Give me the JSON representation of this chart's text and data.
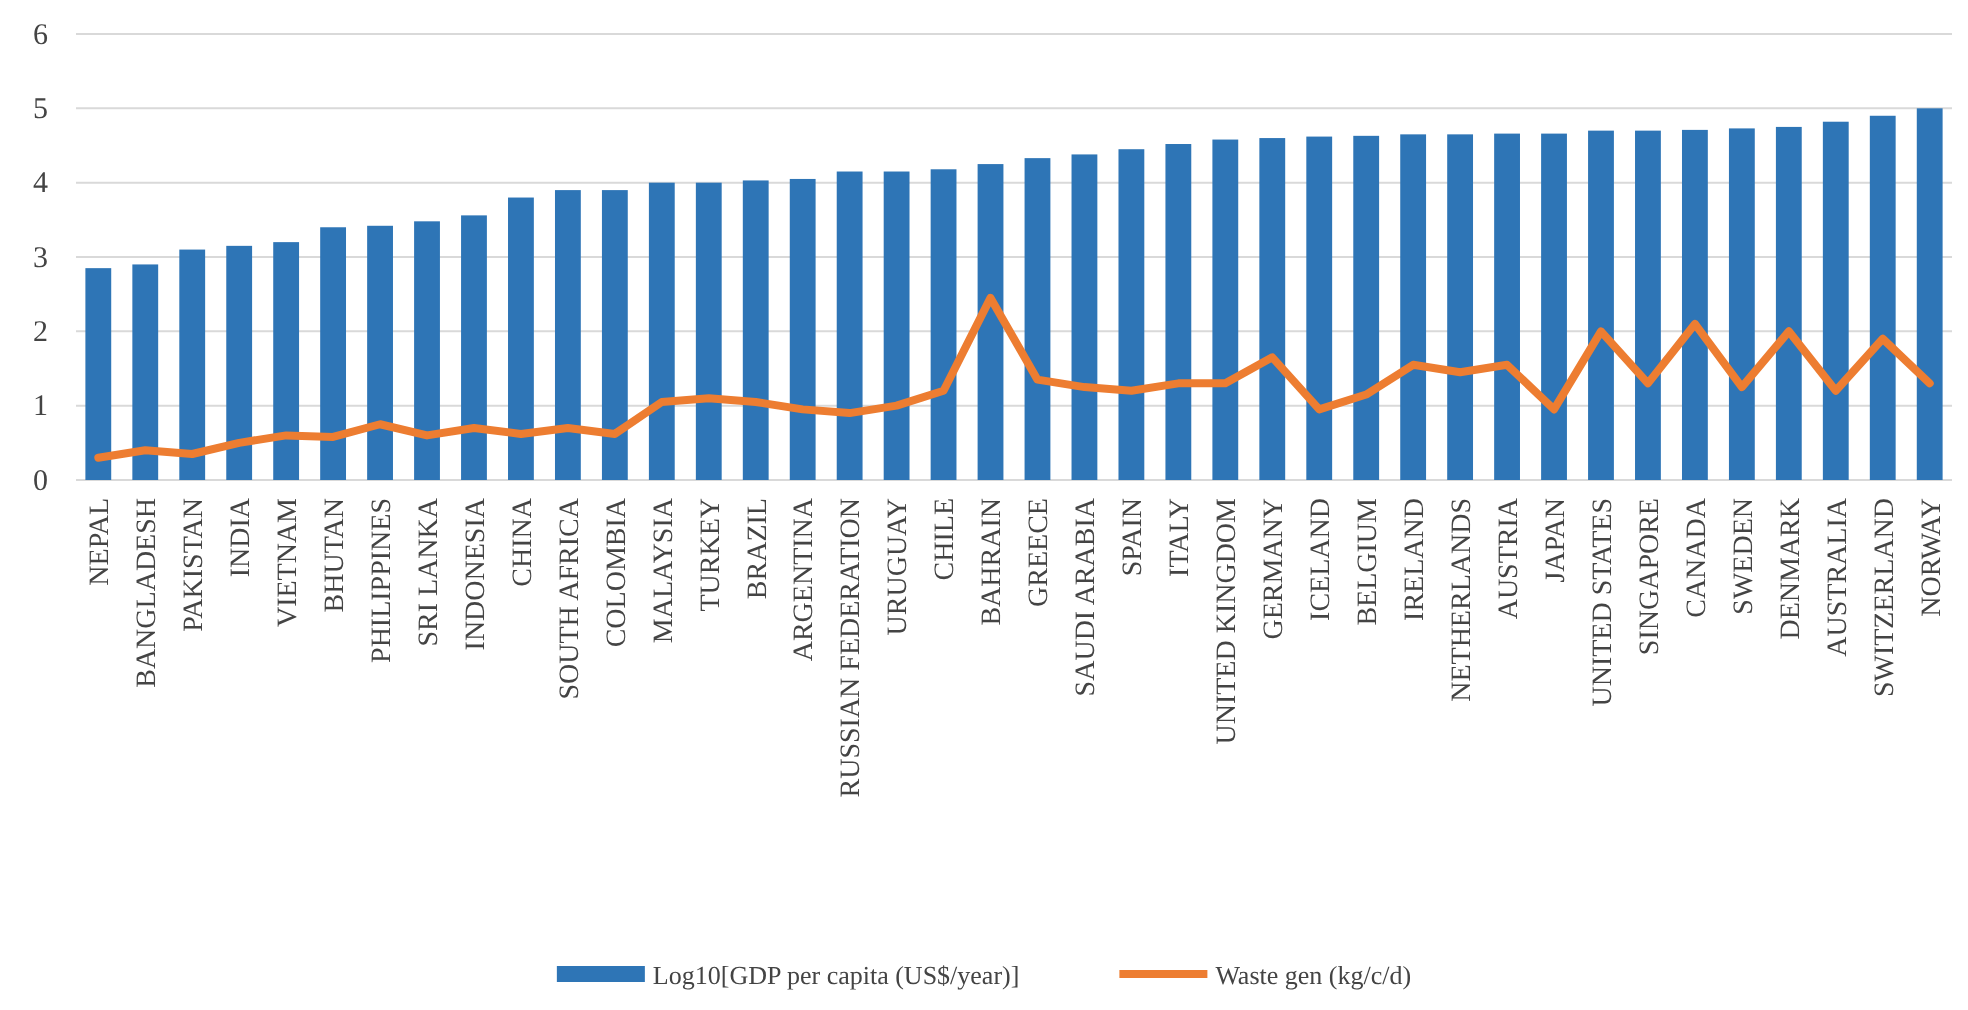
{
  "chart_data": {
    "type": "bar",
    "categories": [
      "NEPAL",
      "BANGLADESH",
      "PAKISTAN",
      "INDIA",
      "VIETNAM",
      "BHUTAN",
      "PHILIPPINES",
      "SRI LANKA",
      "INDONESIA",
      "CHINA",
      "SOUTH AFRICA",
      "COLOMBIA",
      "MALAYSIA",
      "TURKEY",
      "BRAZIL",
      "ARGENTINA",
      "RUSSIAN FEDERATION",
      "URUGUAY",
      "CHILE",
      "BAHRAIN",
      "GREECE",
      "SAUDI ARABIA",
      "SPAIN",
      "ITALY",
      "UNITED KINGDOM",
      "GERMANY",
      "ICELAND",
      "BELGIUM",
      "IRELAND",
      "NETHERLANDS",
      "AUSTRIA",
      "JAPAN",
      "UNITED STATES",
      "SINGAPORE",
      "CANADA",
      "SWEDEN",
      "DENMARK",
      "AUSTRALIA",
      "SWITZERLAND",
      "NORWAY"
    ],
    "series": [
      {
        "name": "Log10[GDP per capita (US$/year)]",
        "color": "#2e75b6",
        "values": [
          2.85,
          2.9,
          3.1,
          3.15,
          3.2,
          3.4,
          3.42,
          3.48,
          3.56,
          3.8,
          3.9,
          3.9,
          4.0,
          4.0,
          4.03,
          4.05,
          4.15,
          4.15,
          4.18,
          4.25,
          4.33,
          4.38,
          4.45,
          4.52,
          4.58,
          4.6,
          4.62,
          4.63,
          4.65,
          4.65,
          4.66,
          4.66,
          4.7,
          4.7,
          4.71,
          4.73,
          4.75,
          4.82,
          4.9,
          5.0
        ]
      },
      {
        "name": "Waste gen (kg/c/d)",
        "type": "line",
        "color": "#ed7d31",
        "values": [
          0.3,
          0.4,
          0.35,
          0.5,
          0.6,
          0.58,
          0.75,
          0.6,
          0.7,
          0.62,
          0.7,
          0.62,
          1.05,
          1.1,
          1.05,
          0.95,
          0.9,
          1.0,
          1.2,
          2.45,
          1.35,
          1.25,
          1.2,
          1.3,
          1.3,
          1.65,
          0.95,
          1.15,
          1.55,
          1.45,
          1.55,
          0.95,
          2.0,
          1.3,
          2.1,
          1.25,
          2.0,
          1.2,
          1.9,
          1.3
        ]
      }
    ],
    "ylim": [
      0,
      6
    ],
    "yticks": [
      0,
      1,
      2,
      3,
      4,
      5,
      6
    ],
    "grid": "y",
    "legend": "bottom",
    "marker": "none"
  }
}
